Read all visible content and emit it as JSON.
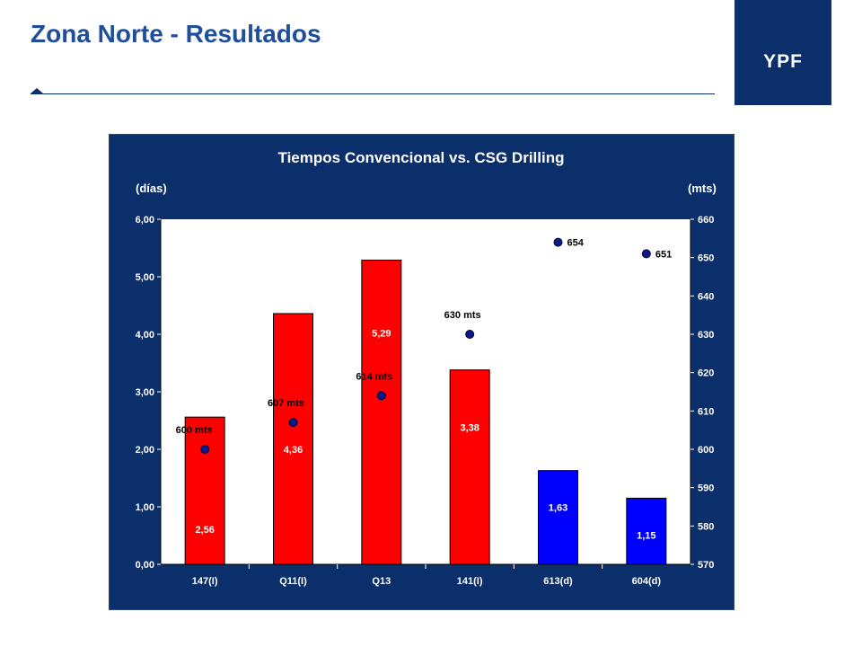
{
  "header": {
    "title": "Zona Norte - Resultados",
    "logo_text": "YPF"
  },
  "colors": {
    "brand": "#0b2f6b",
    "title": "#1f4f9c",
    "bar_conventional": "#ff0000",
    "bar_csg": "#0000ff",
    "marker": "#0a1a8a"
  },
  "chart_data": {
    "type": "bar",
    "title": "Tiempos Convencional vs. CSG Drilling",
    "ylabel": "(días)",
    "y2label": "(mts)",
    "ylim": [
      0,
      6
    ],
    "y2lim": [
      570,
      660
    ],
    "yticks": [
      "0,00",
      "1,00",
      "2,00",
      "3,00",
      "4,00",
      "5,00",
      "6,00"
    ],
    "y2ticks": [
      "570",
      "580",
      "590",
      "600",
      "610",
      "620",
      "630",
      "640",
      "650",
      "660"
    ],
    "categories": [
      "147(I)",
      "Q11(I)",
      "Q13",
      "141(I)",
      "613(d)",
      "604(d)"
    ],
    "bars": [
      {
        "value": 2.56,
        "label": "2,56",
        "color": "#ff0000"
      },
      {
        "value": 4.36,
        "label": "4,36",
        "color": "#ff0000"
      },
      {
        "value": 5.29,
        "label": "5,29",
        "color": "#ff0000"
      },
      {
        "value": 3.38,
        "label": "3,38",
        "color": "#ff0000"
      },
      {
        "value": 1.63,
        "label": "1,63",
        "color": "#0000ff"
      },
      {
        "value": 1.15,
        "label": "1,15",
        "color": "#0000ff"
      }
    ],
    "depth": [
      {
        "value": 600,
        "label": "600 mts"
      },
      {
        "value": 607,
        "label": "607 mts"
      },
      {
        "value": 614,
        "label": "614 mts"
      },
      {
        "value": 630,
        "label": "630 mts"
      },
      {
        "value": 654,
        "label": "654"
      },
      {
        "value": 651,
        "label": "651"
      }
    ],
    "grid": false,
    "legend": "none"
  }
}
